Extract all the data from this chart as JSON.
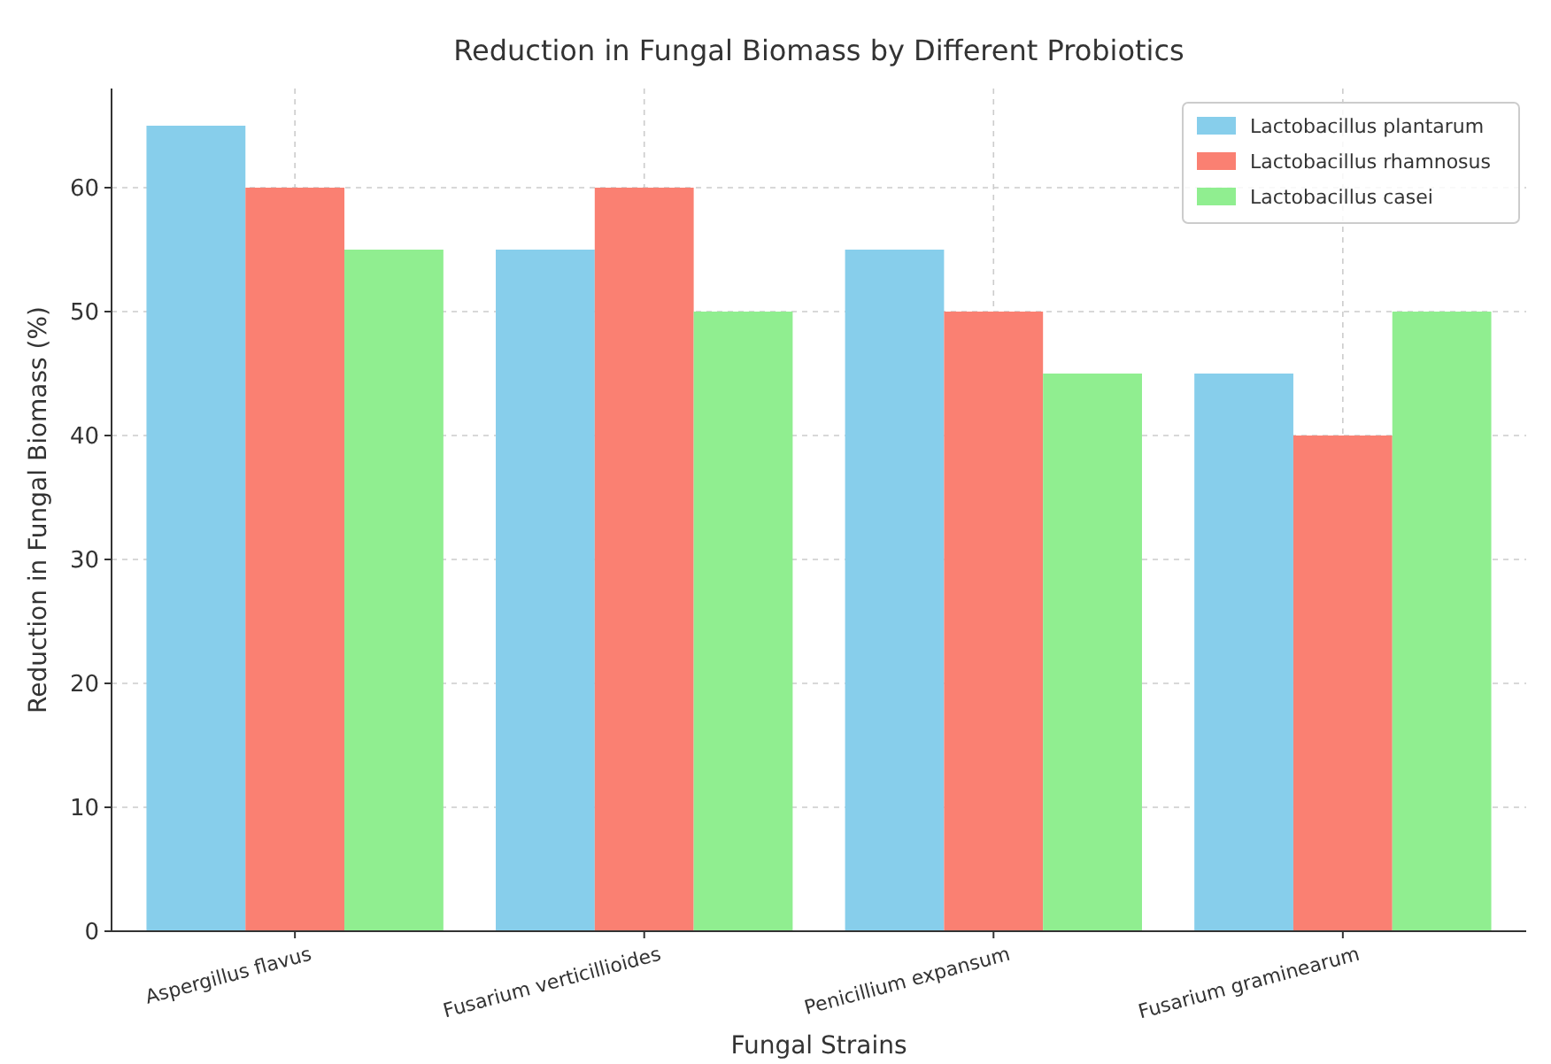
{
  "chart_data": {
    "type": "bar",
    "title": "Reduction in Fungal Biomass by Different Probiotics",
    "xlabel": "Fungal Strains",
    "ylabel": "Reduction in Fungal Biomass (%)",
    "categories": [
      "Aspergillus flavus",
      "Fusarium verticillioides",
      "Penicillium expansum",
      "Fusarium graminearum"
    ],
    "series": [
      {
        "name": "Lactobacillus plantarum",
        "color": "#87ceeb",
        "values": [
          65,
          55,
          55,
          45
        ]
      },
      {
        "name": "Lactobacillus rhamnosus",
        "color": "#fa8072",
        "values": [
          60,
          60,
          50,
          40
        ]
      },
      {
        "name": "Lactobacillus casei",
        "color": "#90ee90",
        "values": [
          55,
          50,
          45,
          50
        ]
      }
    ],
    "ylim": [
      0,
      68
    ],
    "yticks": [
      0,
      10,
      20,
      30,
      40,
      50,
      60
    ],
    "grid": true,
    "legend": "top right"
  }
}
